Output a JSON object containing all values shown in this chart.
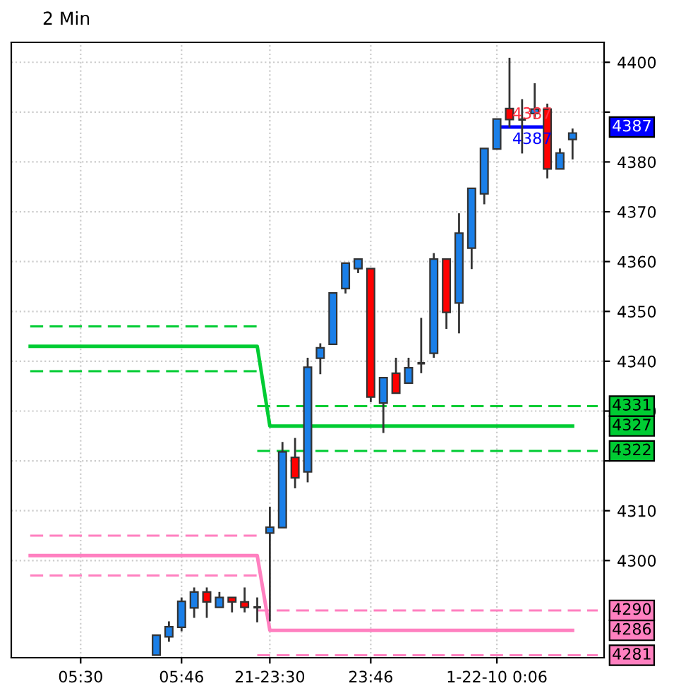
{
  "chart_data": {
    "type": "candlestick",
    "title": "2 Min",
    "categories": [
      null,
      null,
      null,
      null,
      null,
      "05:30",
      null,
      null,
      null,
      null,
      null,
      null,
      null,
      "05:46",
      null,
      null,
      null,
      null,
      null,
      null,
      "21-23:30",
      null,
      null,
      null,
      null,
      null,
      null,
      null,
      "23:46",
      null,
      null,
      null,
      null,
      null,
      null,
      null,
      null,
      null,
      "1-22-10 0:06",
      null,
      null,
      null,
      null,
      null,
      null,
      null,
      null
    ],
    "ohlc": [
      null,
      null,
      null,
      null,
      null,
      null,
      null,
      null,
      null,
      null,
      null,
      [
        4281,
        4285,
        4281,
        4285
      ],
      [
        4284.7,
        4287.8,
        4283.7,
        4286.7
      ],
      [
        4286.6,
        4292.6,
        4285.8,
        4291.8
      ],
      [
        4290.5,
        4294.6,
        4288.5,
        4293.7
      ],
      [
        4293.7,
        4294.6,
        4288.5,
        4291.7
      ],
      [
        4290.6,
        4293.7,
        4290.6,
        4292.6
      ],
      [
        4292.6,
        4292.6,
        4289.6,
        4291.7
      ],
      [
        4291.7,
        4294.6,
        4289.6,
        4290.6
      ],
      [
        4290.6,
        4292.6,
        4287.6,
        4290.6
      ],
      [
        4305.5,
        4310.8,
        4287.8,
        4306.7
      ],
      [
        4306.6,
        4323.8,
        4306.6,
        4321.8
      ],
      [
        4320.7,
        4324.6,
        4314.5,
        4316.6
      ],
      [
        4317.8,
        4340.7,
        4315.7,
        4338.8
      ],
      [
        4340.6,
        4343.6,
        4337.4,
        4342.7
      ],
      [
        4343.4,
        4353.7,
        4343.4,
        4353.7
      ],
      [
        4354.6,
        4359.7,
        4353.6,
        4359.7
      ],
      [
        4358.6,
        4360.5,
        4357.7,
        4360.5
      ],
      [
        4358.6,
        4358.6,
        4331.8,
        4332.8
      ],
      [
        4331.6,
        4336.7,
        4325.6,
        4336.7
      ],
      [
        4337.6,
        4340.7,
        4333.6,
        4333.6
      ],
      [
        4335.6,
        4340.7,
        4335.6,
        4338.7
      ],
      [
        4339.6,
        4348.7,
        4337.6,
        4339.6
      ],
      [
        4341.6,
        4361.7,
        4340.7,
        4360.5
      ],
      [
        4360.5,
        4360.5,
        4346.5,
        4349.8
      ],
      [
        4351.7,
        4369.7,
        4345.6,
        4365.7
      ],
      [
        4362.7,
        4374.7,
        4358.5,
        4374.7
      ],
      [
        4373.6,
        4382.7,
        4371.5,
        4382.7
      ],
      [
        4382.6,
        4388.6,
        4382.6,
        4388.6
      ],
      [
        4390.7,
        4400.9,
        4386.9,
        4388.5
      ],
      [
        4388.5,
        4392.6,
        4381.7,
        4388.5
      ],
      [
        4389.7,
        4395.8,
        4388.6,
        4390.6
      ],
      [
        4390.6,
        4391.7,
        4376.7,
        4378.6
      ],
      [
        4378.6,
        4382.7,
        4378.6,
        4381.8
      ],
      [
        4384.5,
        4386.7,
        4380.5,
        4385.8
      ],
      null,
      null
    ],
    "colors": [
      null,
      null,
      null,
      null,
      null,
      null,
      null,
      null,
      null,
      null,
      null,
      "#1a7fe8",
      "#1a7fe8",
      "#1a7fe8",
      "#1a7fe8",
      "#ff0000",
      "#1a7fe8",
      "#ff0000",
      "#ff0000",
      "#333333",
      "#1a7fe8",
      "#1a7fe8",
      "#ff0000",
      "#1a7fe8",
      "#1a7fe8",
      "#1a7fe8",
      "#1a7fe8",
      "#1a7fe8",
      "#ff0000",
      "#1a7fe8",
      "#ff0000",
      "#1a7fe8",
      "#333333",
      "#1a7fe8",
      "#ff0000",
      "#1a7fe8",
      "#1a7fe8",
      "#1a7fe8",
      "#1a7fe8",
      "#ff0000",
      "#333333",
      "#1a7fe8",
      "#ff0000",
      "#1a7fe8",
      "#1a7fe8",
      null,
      null
    ],
    "series": [
      {
        "type": "line",
        "color": "#00cc33",
        "line_style": "solid",
        "name": "4327",
        "values": [
          null,
          4343,
          4343,
          4343,
          4343,
          4343,
          4343,
          4343,
          4343,
          4343,
          4343,
          4343,
          4343,
          4343,
          4343,
          4343,
          4343,
          4343,
          4343,
          4343,
          4327,
          4327,
          4327,
          4327,
          4327,
          4327,
          4327,
          4327,
          4327,
          4327,
          4327,
          4327,
          4327,
          4327,
          4327,
          4327,
          4327,
          4327,
          4327,
          4327,
          4327,
          4327,
          4327,
          4327,
          4327,
          null,
          null
        ]
      },
      {
        "type": "line",
        "color": "#00cc33",
        "line_style": "dashed",
        "values": [
          null,
          4347,
          4347,
          4347,
          4347,
          4347,
          4347,
          4347,
          4347,
          4347,
          4347,
          4347,
          4347,
          4347,
          4347,
          4347,
          4347,
          4347,
          4347,
          4347,
          null,
          null,
          null,
          null,
          null,
          null,
          null,
          null,
          null,
          null,
          null,
          null,
          null,
          null,
          null,
          null,
          null,
          null,
          null,
          null,
          null,
          null,
          null,
          null,
          null,
          null,
          null
        ]
      },
      {
        "type": "line",
        "color": "#00cc33",
        "line_style": "dashed",
        "values": [
          null,
          4338,
          4338,
          4338,
          4338,
          4338,
          4338,
          4338,
          4338,
          4338,
          4338,
          4338,
          4338,
          4338,
          4338,
          4338,
          4338,
          4338,
          4338,
          4338,
          null,
          null,
          null,
          null,
          null,
          null,
          null,
          null,
          null,
          null,
          null,
          null,
          null,
          null,
          null,
          null,
          null,
          null,
          null,
          null,
          null,
          null,
          null,
          null,
          null,
          null,
          null
        ]
      },
      {
        "type": "line",
        "color": "#00cc33",
        "line_style": "dashed",
        "name": "4331",
        "values": [
          null,
          null,
          null,
          null,
          null,
          null,
          null,
          null,
          null,
          null,
          null,
          null,
          null,
          null,
          null,
          null,
          null,
          null,
          null,
          4331,
          4331,
          4331,
          4331,
          4331,
          4331,
          4331,
          4331,
          4331,
          4331,
          4331,
          4331,
          4331,
          4331,
          4331,
          4331,
          4331,
          4331,
          4331,
          4331,
          4331,
          4331,
          4331,
          4331,
          4331,
          4331,
          4331,
          4331
        ]
      },
      {
        "type": "line",
        "color": "#00cc33",
        "line_style": "dashed",
        "name": "4322",
        "values": [
          null,
          null,
          null,
          null,
          null,
          null,
          null,
          null,
          null,
          null,
          null,
          null,
          null,
          null,
          null,
          null,
          null,
          null,
          null,
          4322,
          4322,
          4322,
          4322,
          4322,
          4322,
          4322,
          4322,
          4322,
          4322,
          4322,
          4322,
          4322,
          4322,
          4322,
          4322,
          4322,
          4322,
          4322,
          4322,
          4322,
          4322,
          4322,
          4322,
          4322,
          4322,
          4322,
          4322
        ]
      },
      {
        "type": "line",
        "color": "#ff80c0",
        "line_style": "solid",
        "name": "4286",
        "values": [
          null,
          4301,
          4301,
          4301,
          4301,
          4301,
          4301,
          4301,
          4301,
          4301,
          4301,
          4301,
          4301,
          4301,
          4301,
          4301,
          4301,
          4301,
          4301,
          4301,
          4286,
          4286,
          4286,
          4286,
          4286,
          4286,
          4286,
          4286,
          4286,
          4286,
          4286,
          4286,
          4286,
          4286,
          4286,
          4286,
          4286,
          4286,
          4286,
          4286,
          4286,
          4286,
          4286,
          4286,
          4286,
          null,
          null
        ]
      },
      {
        "type": "line",
        "color": "#ff80c0",
        "line_style": "dashed",
        "values": [
          null,
          4305,
          4305,
          4305,
          4305,
          4305,
          4305,
          4305,
          4305,
          4305,
          4305,
          4305,
          4305,
          4305,
          4305,
          4305,
          4305,
          4305,
          4305,
          4305,
          null,
          null,
          null,
          null,
          null,
          null,
          null,
          null,
          null,
          null,
          null,
          null,
          null,
          null,
          null,
          null,
          null,
          null,
          null,
          null,
          null,
          null,
          null,
          null,
          null,
          null,
          null
        ]
      },
      {
        "type": "line",
        "color": "#ff80c0",
        "line_style": "dashed",
        "values": [
          null,
          4297,
          4297,
          4297,
          4297,
          4297,
          4297,
          4297,
          4297,
          4297,
          4297,
          4297,
          4297,
          4297,
          4297,
          4297,
          4297,
          4297,
          4297,
          4297,
          null,
          null,
          null,
          null,
          null,
          null,
          null,
          null,
          null,
          null,
          null,
          null,
          null,
          null,
          null,
          null,
          null,
          null,
          null,
          null,
          null,
          null,
          null,
          null,
          null,
          null,
          null
        ]
      },
      {
        "type": "line",
        "color": "#ff80c0",
        "line_style": "dashed",
        "name": "4290",
        "values": [
          null,
          null,
          null,
          null,
          null,
          null,
          null,
          null,
          null,
          null,
          null,
          null,
          null,
          null,
          null,
          null,
          null,
          null,
          null,
          4290,
          4290,
          4290,
          4290,
          4290,
          4290,
          4290,
          4290,
          4290,
          4290,
          4290,
          4290,
          4290,
          4290,
          4290,
          4290,
          4290,
          4290,
          4290,
          4290,
          4290,
          4290,
          4290,
          4290,
          4290,
          4290,
          4290,
          4290
        ]
      },
      {
        "type": "line",
        "color": "#ff80c0",
        "line_style": "dashed",
        "name": "4281",
        "values": [
          null,
          null,
          null,
          null,
          null,
          null,
          null,
          null,
          null,
          null,
          null,
          null,
          null,
          null,
          null,
          null,
          null,
          null,
          null,
          4281,
          4281,
          4281,
          4281,
          4281,
          4281,
          4281,
          4281,
          4281,
          4281,
          4281,
          4281,
          4281,
          4281,
          4281,
          4281,
          4281,
          4281,
          4281,
          4281,
          4281,
          4281,
          4281,
          4281,
          4281,
          4281,
          4281,
          4281
        ]
      },
      {
        "type": "line",
        "color": "#0000ff",
        "line_style": "solid",
        "name": "4387",
        "values": [
          null,
          null,
          null,
          null,
          null,
          null,
          null,
          null,
          null,
          null,
          null,
          null,
          null,
          null,
          null,
          null,
          null,
          null,
          null,
          null,
          null,
          null,
          null,
          null,
          null,
          null,
          null,
          null,
          null,
          null,
          null,
          null,
          null,
          null,
          null,
          null,
          null,
          null,
          4387,
          4387,
          4387,
          4387,
          4387,
          null,
          null,
          null,
          null
        ]
      }
    ],
    "annotations": [
      "4387",
      "4387"
    ],
    "ylim": [
      4280.5,
      4404
    ],
    "yticks": [
      4300,
      4310,
      {
        "value": 4320,
        "label": null
      },
      4330,
      4340,
      4350,
      4360,
      4370,
      4380,
      {
        "value": 4390,
        "label": null
      },
      4400
    ],
    "grid": true,
    "legend": "right"
  }
}
